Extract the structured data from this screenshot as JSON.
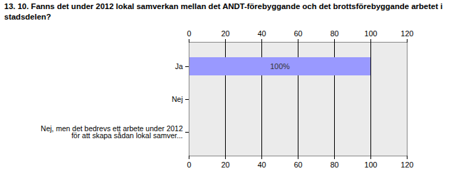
{
  "chart_data": {
    "type": "bar",
    "orientation": "horizontal",
    "title": "13. 10. Fanns det under 2012 lokal samverkan mellan det ANDT-förebyggande och det brottsförebyggande arbetet i stadsdelen?",
    "categories": [
      "Ja",
      "Nej",
      "Nej, men det bedrevs ett arbete under 2012 för att skapa sådan lokal samver..."
    ],
    "values": [
      100,
      0,
      0
    ],
    "value_labels": [
      "100%",
      null,
      null
    ],
    "data_labels": true,
    "color": "#9999ff",
    "xlim": [
      0,
      120
    ],
    "xticks": [
      0,
      20,
      40,
      60,
      80,
      100,
      120
    ],
    "grid": true
  }
}
